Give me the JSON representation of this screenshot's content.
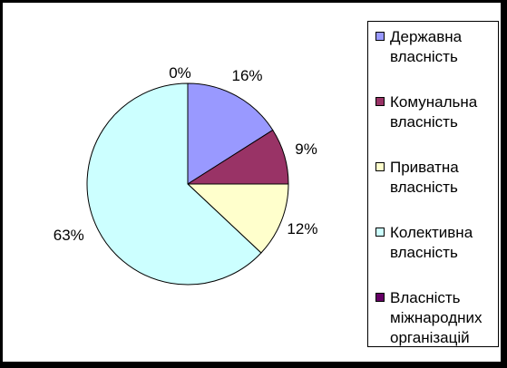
{
  "chart_data": {
    "type": "pie",
    "categories": [
      "Державна власність",
      "Комунальна власність",
      "Приватна власність",
      "Колективна власність",
      "Власність міжнародних організацій"
    ],
    "values": [
      16,
      9,
      12,
      63,
      0
    ],
    "labels": [
      "16%",
      "9%",
      "12%",
      "63%",
      "0%"
    ],
    "colors": [
      "#9999ff",
      "#993366",
      "#ffffcc",
      "#ccffff",
      "#660066"
    ],
    "legend": "right",
    "start_angle_deg": 0,
    "direction": "clockwise"
  }
}
